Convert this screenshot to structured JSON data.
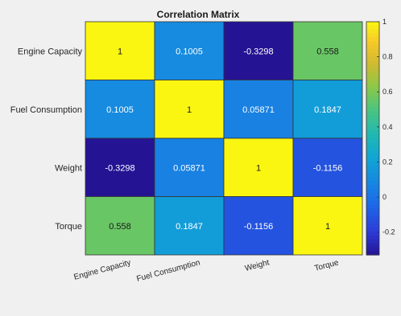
{
  "chart_data": {
    "type": "heatmap",
    "title": "Correlation Matrix",
    "rows": [
      "Engine Capacity",
      "Fuel Consumption",
      "Weight",
      "Torque"
    ],
    "columns": [
      "Engine Capacity",
      "Fuel Consumption",
      "Weight",
      "Torque"
    ],
    "values": [
      [
        1,
        0.1005,
        -0.3298,
        0.558
      ],
      [
        0.1005,
        1,
        0.05871,
        0.1847
      ],
      [
        -0.3298,
        0.05871,
        1,
        -0.1156
      ],
      [
        0.558,
        0.1847,
        -0.1156,
        1
      ]
    ],
    "value_labels": [
      [
        "1",
        "0.1005",
        "-0.3298",
        "0.558"
      ],
      [
        "0.1005",
        "1",
        "0.05871",
        "0.1847"
      ],
      [
        "-0.3298",
        "0.05871",
        "1",
        "-0.1156"
      ],
      [
        "0.558",
        "0.1847",
        "-0.1156",
        "1"
      ]
    ],
    "colormap": "parula",
    "color_range": [
      -0.3298,
      1
    ],
    "colorbar": {
      "ticks": [
        1,
        0.8,
        0.6,
        0.4,
        0.2,
        0,
        -0.2
      ],
      "tick_labels": [
        "1",
        "0.8",
        "0.6",
        "0.4",
        "0.2",
        "0",
        "-0.2"
      ]
    }
  }
}
